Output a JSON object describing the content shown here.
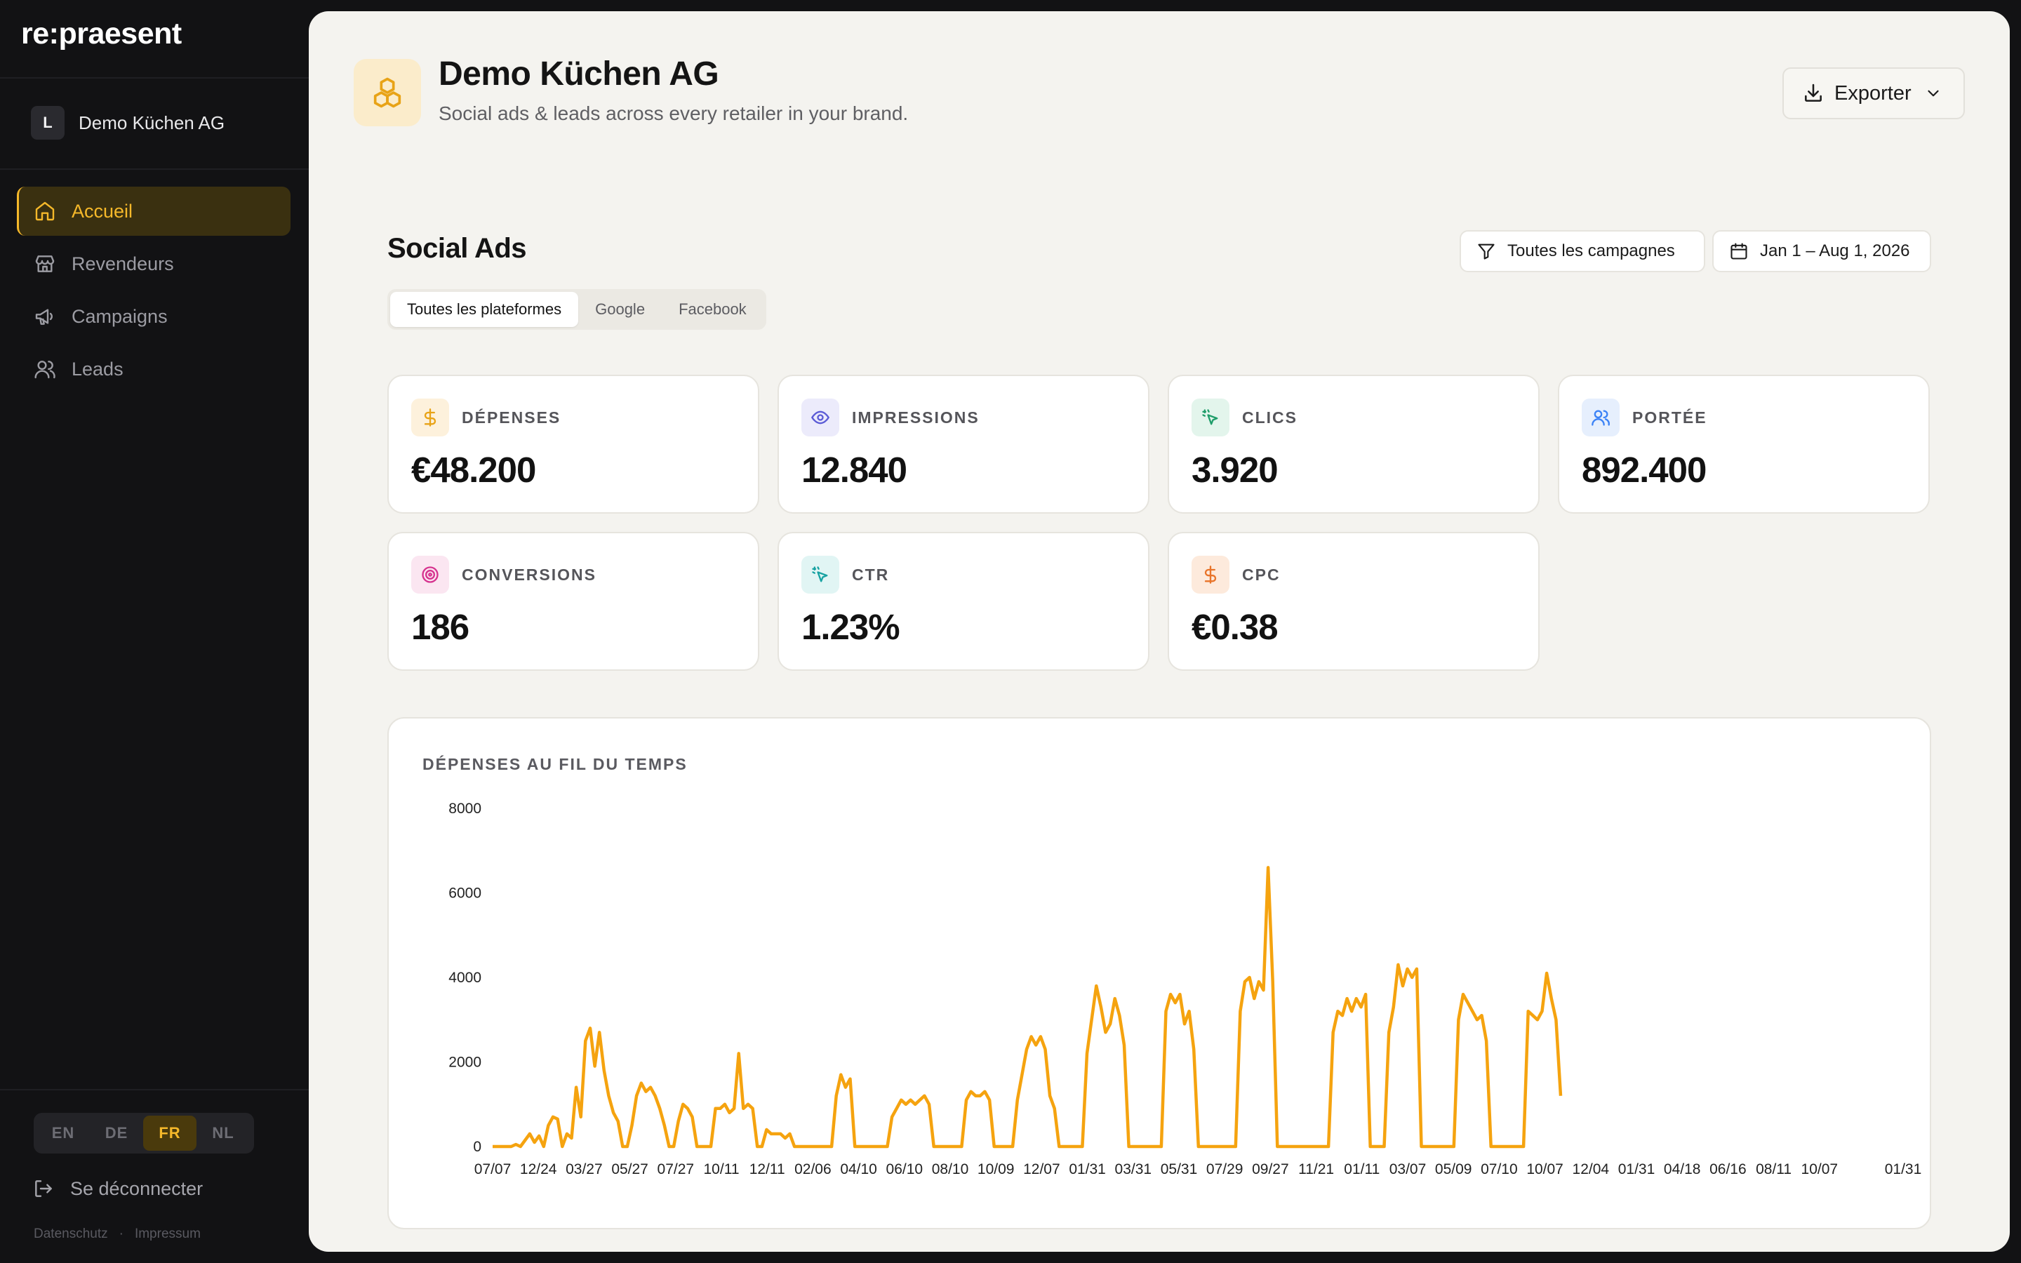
{
  "sidebar": {
    "logo": "re:praesent",
    "tenant": {
      "initial": "L",
      "name": "Demo Küchen AG"
    },
    "nav": [
      {
        "label": "Accueil",
        "icon": "home-icon",
        "active": true
      },
      {
        "label": "Revendeurs",
        "icon": "store-icon",
        "active": false
      },
      {
        "label": "Campaigns",
        "icon": "megaphone-icon",
        "active": false
      },
      {
        "label": "Leads",
        "icon": "users-icon",
        "active": false
      }
    ],
    "languages": [
      "EN",
      "DE",
      "FR",
      "NL"
    ],
    "active_language": "FR",
    "logout_label": "Se déconnecter",
    "footer": {
      "privacy": "Datenschutz",
      "dot": "·",
      "imprint": "Impressum"
    }
  },
  "header": {
    "title": "Demo Küchen AG",
    "subtitle": "Social ads & leads across every retailer in your brand.",
    "export_label": "Exporter"
  },
  "social_ads": {
    "title": "Social Ads",
    "filter_label": "Toutes les campagnes",
    "date_range": "Jan 1 – Aug 1, 2026",
    "tabs": [
      {
        "label": "Toutes les plateformes",
        "active": true
      },
      {
        "label": "Google",
        "active": false
      },
      {
        "label": "Facebook",
        "active": false
      }
    ]
  },
  "kpis": [
    {
      "label": "DÉPENSES",
      "value": "€48.200",
      "icon": "dollar-icon",
      "color": "#e8a317",
      "bg": "#fdf1dc"
    },
    {
      "label": "IMPRESSIONS",
      "value": "12.840",
      "icon": "eye-icon",
      "color": "#5b5bd6",
      "bg": "#ecebfb"
    },
    {
      "label": "CLICS",
      "value": "3.920",
      "icon": "cursor-click-icon",
      "color": "#1f9d6a",
      "bg": "#e3f5ec"
    },
    {
      "label": "PORTÉE",
      "value": "892.400",
      "icon": "users-icon",
      "color": "#3b82f6",
      "bg": "#e6effd"
    },
    {
      "label": "CONVERSIONS",
      "value": "186",
      "icon": "target-icon",
      "color": "#d6338f",
      "bg": "#fbe6f1"
    },
    {
      "label": "CTR",
      "value": "1.23%",
      "icon": "cursor-click-icon",
      "color": "#17a2a2",
      "bg": "#e1f5f4"
    },
    {
      "label": "CPC",
      "value": "€0.38",
      "icon": "dollar-icon",
      "color": "#e8742a",
      "bg": "#fdeadc"
    }
  ],
  "chart_data": {
    "type": "line",
    "title": "DÉPENSES AU FIL DU TEMPS",
    "line_color": "#f5a30f",
    "ylim": [
      0,
      8000
    ],
    "y_ticks": [
      0,
      2000,
      4000,
      6000,
      8000
    ],
    "x_tick_labels": [
      "07/07",
      "12/24",
      "03/27",
      "05/27",
      "07/27",
      "10/11",
      "12/11",
      "02/06",
      "04/10",
      "06/10",
      "08/10",
      "10/09",
      "12/07",
      "01/31",
      "03/31",
      "05/31",
      "07/29",
      "09/27",
      "11/21",
      "01/11",
      "03/07",
      "05/09",
      "07/10",
      "10/07",
      "12/04",
      "01/31",
      "04/18",
      "06/16",
      "08/11",
      "10/07",
      "01/31"
    ],
    "series": [
      {
        "values": [
          0,
          0,
          0,
          0,
          0,
          50,
          0,
          150,
          300,
          100,
          250,
          0,
          500,
          700,
          650,
          0,
          300,
          200,
          1400,
          700,
          2500,
          2800,
          1900,
          2700,
          1800,
          1200,
          800,
          600,
          0,
          0,
          500,
          1200,
          1500,
          1300,
          1400,
          1200,
          900,
          500,
          0,
          0,
          600,
          1000,
          900,
          700,
          0,
          0,
          0,
          0,
          900,
          900,
          1000,
          800,
          900,
          2200,
          900,
          1000,
          900,
          0,
          0,
          400,
          300,
          300,
          300,
          200,
          300,
          0,
          0,
          0,
          0,
          0,
          0,
          0,
          0,
          0,
          1200,
          1700,
          1400,
          1600,
          0,
          0,
          0,
          0,
          0,
          0,
          0,
          0,
          700,
          900,
          1100,
          1000,
          1100,
          1000,
          1100,
          1200,
          1000,
          0,
          0,
          0,
          0,
          0,
          0,
          0,
          1100,
          1300,
          1200,
          1200,
          1300,
          1100,
          0,
          0,
          0,
          0,
          0,
          1100,
          1700,
          2300,
          2600,
          2400,
          2600,
          2300,
          1200,
          900,
          0,
          0,
          0,
          0,
          0,
          0,
          2200,
          3000,
          3800,
          3300,
          2700,
          2900,
          3500,
          3100,
          2400,
          0,
          0,
          0,
          0,
          0,
          0,
          0,
          0,
          3200,
          3600,
          3400,
          3600,
          2900,
          3200,
          2300,
          0,
          0,
          0,
          0,
          0,
          0,
          0,
          0,
          0,
          3200,
          3900,
          4000,
          3500,
          3900,
          3700,
          6600,
          3900,
          0,
          0,
          0,
          0,
          0,
          0,
          0,
          0,
          0,
          0,
          0,
          0,
          2700,
          3200,
          3100,
          3500,
          3200,
          3500,
          3300,
          3600,
          0,
          0,
          0,
          0,
          2700,
          3300,
          4300,
          3800,
          4200,
          4000,
          4200,
          0,
          0,
          0,
          0,
          0,
          0,
          0,
          0,
          3000,
          3600,
          3400,
          3200,
          3000,
          3100,
          2500,
          0,
          0,
          0,
          0,
          0,
          0,
          0,
          0,
          3200,
          3100,
          3000,
          3200,
          4100,
          3500,
          3000,
          1200
        ]
      }
    ],
    "xlabel": "",
    "ylabel": ""
  }
}
